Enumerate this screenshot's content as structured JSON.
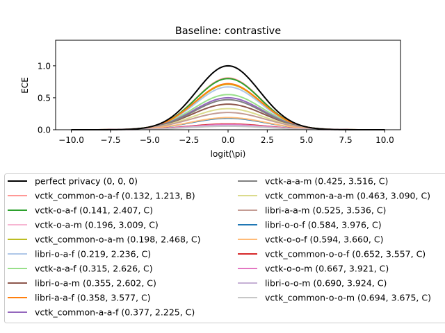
{
  "chart_data": {
    "type": "line",
    "title": "Baseline: contrastive",
    "xlabel": "logit(\\pi)",
    "ylabel": "ECE",
    "xlim": [
      -11,
      11
    ],
    "ylim": [
      0,
      1.4
    ],
    "x_ticks": [
      -10.0,
      -7.5,
      -5.0,
      -2.5,
      0.0,
      2.5,
      5.0,
      7.5,
      10.0
    ],
    "x_tick_labels": [
      "−10.0",
      "−7.5",
      "−5.0",
      "−2.5",
      "0.0",
      "2.5",
      "5.0",
      "7.5",
      "10.0"
    ],
    "y_ticks": [
      0.0,
      0.5,
      1.0
    ],
    "y_tick_labels": [
      "0.0",
      "0.5",
      "1.0"
    ],
    "grid": false,
    "legend_placement": "below plot, two columns",
    "x_domain": [
      -10,
      10
    ],
    "series": [
      {
        "name": "perfect privacy (0, 0, 0)",
        "color": "#000000",
        "peak": 1.0,
        "width": 2.0
      },
      {
        "name": "vctk_common-o-a-f (0.132, 1.213, B)",
        "color": "#ff9896",
        "peak": 0.81,
        "width": 2.05
      },
      {
        "name": "vctk-o-a-f (0.141, 2.407, C)",
        "color": "#2ca02c",
        "peak": 0.8,
        "width": 2.05
      },
      {
        "name": "vctk-o-a-m (0.196, 3.009, C)",
        "color": "#f7b6d2",
        "peak": 0.72,
        "width": 2.1
      },
      {
        "name": "vctk_common-o-a-m (0.198, 2.468, C)",
        "color": "#bcbd22",
        "peak": 0.71,
        "width": 2.1
      },
      {
        "name": "libri-o-a-f (0.219, 2.236, C)",
        "color": "#aec7e8",
        "peak": 0.67,
        "width": 2.1
      },
      {
        "name": "vctk-a-a-f (0.315, 2.626, C)",
        "color": "#98df8a",
        "peak": 0.55,
        "width": 2.2
      },
      {
        "name": "libri-o-a-m (0.355, 2.602, C)",
        "color": "#8c564b",
        "peak": 0.4,
        "width": 2.3
      },
      {
        "name": "libri-a-a-f (0.358, 3.577, C)",
        "color": "#ff7f0e",
        "peak": 0.72,
        "width": 2.1
      },
      {
        "name": "vctk_common-a-a-f (0.377, 2.225, C)",
        "color": "#9467bd",
        "peak": 0.5,
        "width": 2.2
      },
      {
        "name": "vctk-a-a-m (0.425, 3.516, C)",
        "color": "#7f7f7f",
        "peak": 0.47,
        "width": 2.2
      },
      {
        "name": "vctk_common-a-a-m (0.463, 3.090, C)",
        "color": "#dbdb8d",
        "peak": 0.33,
        "width": 2.3
      },
      {
        "name": "libri-a-a-m (0.525, 3.536, C)",
        "color": "#c49c94",
        "peak": 0.27,
        "width": 2.4
      },
      {
        "name": "libri-o-o-f (0.584, 3.976, C)",
        "color": "#1f77b4",
        "peak": 0.18,
        "width": 2.4
      },
      {
        "name": "vctk-o-o-f (0.594, 3.660, C)",
        "color": "#ffbb78",
        "peak": 0.19,
        "width": 2.4
      },
      {
        "name": "vctk_common-o-o-f (0.652, 3.557, C)",
        "color": "#d62728",
        "peak": 0.09,
        "width": 2.5
      },
      {
        "name": "vctk-o-o-m (0.667, 3.921, C)",
        "color": "#e377c2",
        "peak": 0.08,
        "width": 2.5
      },
      {
        "name": "libri-o-o-m (0.690, 3.924, C)",
        "color": "#c5b0d5",
        "peak": 0.065,
        "width": 2.5
      },
      {
        "name": "vctk_common-o-o-m (0.694, 3.675, C)",
        "color": "#c7c7c7",
        "peak": 0.055,
        "width": 2.5
      }
    ]
  }
}
